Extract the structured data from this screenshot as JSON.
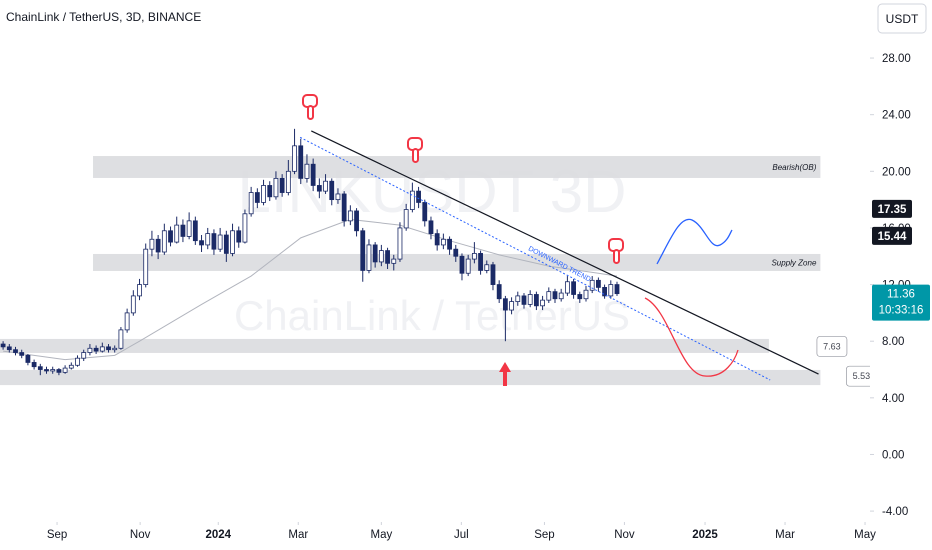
{
  "chart_data": {
    "type": "candlestick",
    "title": "ChainLink / TetherUS, 3D, BINANCE",
    "currency": "USDT",
    "watermark": "LINKUSDT 3D",
    "watermark_subtitle": "ChainLink / TetherUS",
    "up_color": "#ffffff",
    "down_color": "#1b2a66",
    "wick_color": "#1b2a66",
    "xlim": [
      -0.5,
      139.8
    ],
    "ylim": [
      -4.77,
      32.1
    ],
    "xticks": [
      {
        "value": 8.7,
        "label": "Sep"
      },
      {
        "value": 22.1,
        "label": "Nov"
      },
      {
        "value": 34.7,
        "label": "2024"
      },
      {
        "value": 47.6,
        "label": "Mar"
      },
      {
        "value": 61,
        "label": "May"
      },
      {
        "value": 73.9,
        "label": "Jul"
      },
      {
        "value": 87.3,
        "label": "Sep"
      },
      {
        "value": 100.2,
        "label": "Nov"
      },
      {
        "value": 113.2,
        "label": "2025"
      },
      {
        "value": 126.1,
        "label": "Mar"
      },
      {
        "value": 139,
        "label": "May"
      }
    ],
    "bold_xtick_labels": [
      "2024",
      "2025"
    ],
    "yticks": [
      {
        "value": 28,
        "label": "28.00"
      },
      {
        "value": 24,
        "label": "24.00"
      },
      {
        "value": 20,
        "label": "20.00"
      },
      {
        "value": 16,
        "label": "16.00"
      },
      {
        "value": 12,
        "label": "12.00"
      },
      {
        "value": 8,
        "label": "8.00"
      },
      {
        "value": 4,
        "label": "4.00"
      },
      {
        "value": 0,
        "label": "0.00"
      },
      {
        "value": -4,
        "label": "-4.00"
      }
    ],
    "open": [
      7.8,
      7.6,
      7.4,
      7.2,
      7.0,
      6.5,
      6.2,
      6.0,
      5.9,
      6.0,
      5.8,
      6.1,
      6.3,
      6.8,
      7.2,
      7.5,
      7.3,
      7.6,
      7.4,
      7.5,
      8.8,
      10.0,
      11.2,
      12.0,
      14.5,
      15.2,
      14.3,
      15.8,
      15.0,
      16.2,
      15.4,
      16.5,
      15.1,
      14.8,
      15.6,
      14.5,
      15.5,
      14.2,
      15.8,
      15.0,
      17.0,
      18.5,
      17.8,
      19.0,
      18.2,
      19.5,
      18.5,
      20.0,
      21.8,
      19.5,
      20.5,
      19.0,
      18.6,
      19.3,
      18.0,
      18.4,
      16.5,
      17.2,
      15.8,
      13.0,
      14.8,
      13.6,
      14.4,
      13.5,
      13.8,
      16.0,
      17.3,
      18.6,
      17.8,
      16.5,
      15.6,
      14.8,
      15.2,
      14.5,
      14.0,
      12.8,
      13.8,
      14.2,
      13.0,
      13.4,
      12.0,
      11.0,
      10.2,
      10.8,
      11.2,
      10.6,
      11.3,
      10.5,
      10.9,
      11.5,
      11.0,
      11.4,
      12.2,
      11.3,
      11.0,
      11.6,
      12.3,
      11.8,
      11.2,
      12.0
    ],
    "high": [
      8.0,
      7.8,
      7.6,
      7.4,
      7.1,
      6.7,
      6.4,
      6.2,
      6.2,
      6.1,
      6.3,
      6.5,
      7.0,
      7.4,
      7.8,
      7.7,
      7.9,
      7.8,
      7.7,
      9.0,
      10.3,
      11.6,
      12.4,
      14.9,
      15.8,
      15.5,
      16.3,
      16.1,
      16.8,
      16.6,
      17.1,
      16.8,
      15.5,
      16.0,
      15.9,
      16.0,
      15.8,
      16.3,
      16.1,
      17.3,
      18.9,
      18.8,
      19.4,
      19.3,
      20.0,
      19.8,
      20.8,
      23.0,
      22.3,
      21.2,
      20.9,
      19.5,
      19.8,
      19.5,
      18.8,
      18.6,
      17.6,
      17.4,
      16.0,
      15.2,
      15.0,
      14.8,
      14.6,
      14.1,
      16.4,
      17.7,
      19.2,
      18.9,
      18.0,
      16.8,
      15.9,
      15.6,
      15.4,
      14.8,
      14.2,
      14.1,
      15.0,
      14.4,
      13.7,
      13.6,
      12.3,
      11.2,
      11.1,
      11.5,
      11.4,
      11.6,
      11.5,
      11.2,
      11.8,
      11.7,
      11.7,
      12.6,
      12.4,
      11.5,
      11.9,
      12.6,
      12.5,
      12.0,
      12.3,
      12.2
    ],
    "low": [
      7.4,
      7.2,
      7.0,
      6.8,
      6.3,
      6.0,
      5.6,
      5.7,
      5.7,
      5.6,
      5.7,
      6.0,
      6.2,
      6.6,
      7.0,
      7.1,
      7.2,
      7.2,
      7.2,
      7.4,
      8.6,
      9.8,
      10.9,
      11.8,
      14.0,
      13.8,
      14.1,
      14.7,
      14.9,
      15.0,
      15.2,
      14.8,
      14.3,
      14.5,
      14.1,
      14.3,
      13.6,
      14.0,
      14.6,
      14.9,
      16.8,
      17.4,
      17.6,
      17.9,
      18.0,
      18.2,
      18.3,
      19.8,
      19.1,
      19.2,
      18.6,
      18.1,
      18.4,
      17.6,
      17.7,
      16.1,
      16.2,
      15.4,
      12.2,
      12.8,
      13.2,
      13.3,
      13.1,
      13.0,
      13.6,
      15.8,
      17.1,
      17.4,
      16.1,
      15.2,
      14.4,
      14.5,
      14.1,
      13.6,
      12.3,
      12.6,
      13.5,
      12.7,
      12.8,
      11.6,
      10.7,
      8.0,
      9.9,
      10.5,
      10.3,
      10.4,
      10.2,
      10.2,
      10.7,
      10.7,
      10.8,
      11.2,
      11.0,
      10.7,
      10.8,
      11.4,
      11.5,
      11.0,
      11.0,
      11.2
    ],
    "close": [
      7.6,
      7.4,
      7.2,
      7.0,
      6.5,
      6.2,
      6.0,
      5.9,
      6.0,
      5.8,
      6.1,
      6.3,
      6.8,
      7.2,
      7.5,
      7.3,
      7.6,
      7.4,
      7.5,
      8.8,
      10.0,
      11.2,
      12.0,
      14.5,
      15.2,
      14.3,
      15.8,
      15.0,
      16.2,
      15.4,
      16.5,
      15.1,
      14.8,
      15.6,
      14.5,
      15.5,
      14.2,
      15.8,
      15.0,
      17.0,
      18.5,
      17.8,
      19.0,
      18.2,
      19.5,
      18.5,
      20.0,
      21.8,
      19.5,
      20.5,
      19.0,
      18.6,
      19.3,
      18.0,
      18.4,
      16.5,
      17.2,
      15.8,
      13.0,
      14.8,
      13.6,
      14.4,
      13.5,
      13.8,
      16.0,
      17.3,
      18.6,
      17.8,
      16.5,
      15.6,
      14.8,
      15.2,
      14.5,
      14.0,
      12.8,
      13.8,
      14.2,
      13.0,
      13.4,
      12.0,
      11.0,
      10.2,
      10.8,
      11.2,
      10.6,
      11.3,
      10.5,
      10.9,
      11.5,
      11.0,
      11.4,
      12.2,
      11.3,
      11.0,
      11.6,
      12.3,
      11.8,
      11.2,
      12.0,
      11.36
    ],
    "moving_average": {
      "color": "#b2b5be",
      "x": [
        0,
        10,
        18,
        22,
        32,
        40,
        48,
        56,
        64,
        72,
        80,
        88,
        96,
        99
      ],
      "values": [
        7.3,
        6.7,
        7.0,
        8.0,
        10.6,
        12.6,
        15.3,
        16.6,
        16.2,
        15.1,
        14.1,
        13.3,
        12.8,
        12.6
      ]
    },
    "zones": [
      {
        "label": "Bearish(OB)",
        "low": 19.53,
        "high": 21.08,
        "start": 14.5,
        "end": 131.8
      },
      {
        "label": "Supply Zone",
        "low": 12.96,
        "high": 14.16,
        "start": 14.5,
        "end": 131.8
      },
      {
        "low": 7.17,
        "high": 8.16,
        "start": -0.5,
        "end": 123.5,
        "value_label": 7.63
      },
      {
        "low": 4.9,
        "high": 5.97,
        "start": -0.5,
        "end": 131.8,
        "value_label": 5.53
      }
    ],
    "trendline": {
      "color": "#131722",
      "start": [
        49.7,
        22.85
      ],
      "end": [
        131.5,
        5.68
      ]
    },
    "trend_channel": {
      "label": "DOWNWARD TREND",
      "color": "#2962ff",
      "start": [
        47.9,
        22.4
      ],
      "end": [
        123.7,
        5.26
      ]
    },
    "price_markers": [
      17.35,
      15.44
    ],
    "last_price": 11.36,
    "countdown": "10:33:16",
    "last_price_color": "#0097a7"
  }
}
